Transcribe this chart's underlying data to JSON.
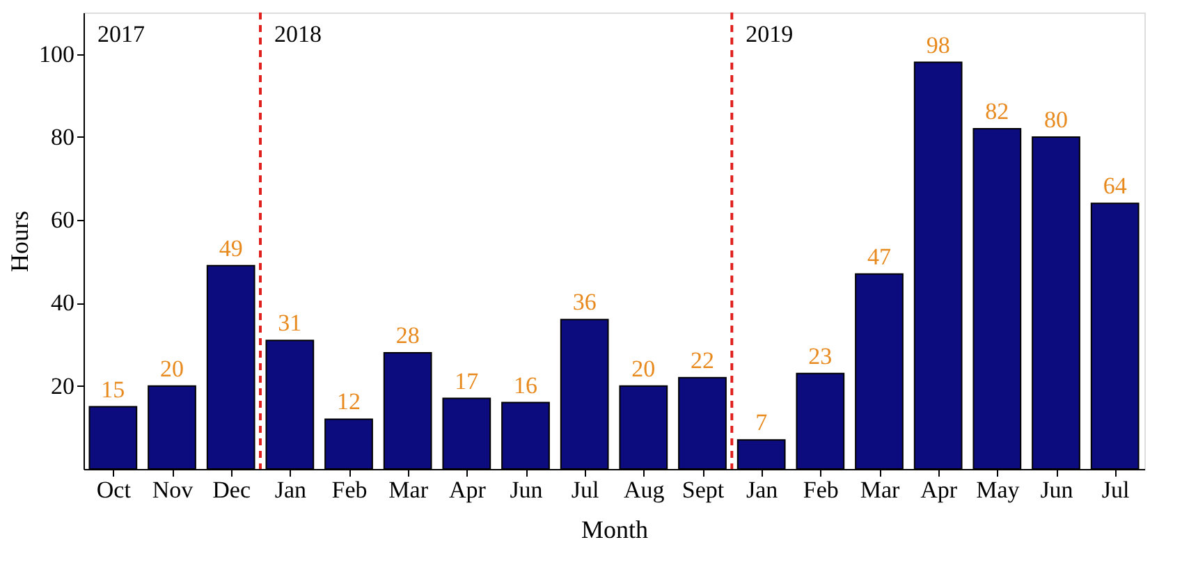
{
  "chart_data": {
    "type": "bar",
    "categories": [
      "Oct",
      "Nov",
      "Dec",
      "Jan",
      "Feb",
      "Mar",
      "Apr",
      "Jun",
      "Jul",
      "Aug",
      "Sept",
      "Jan",
      "Feb",
      "Mar",
      "Apr",
      "May",
      "Jun",
      "Jul"
    ],
    "values": [
      15,
      20,
      49,
      31,
      12,
      28,
      17,
      16,
      36,
      20,
      22,
      7,
      23,
      47,
      98,
      82,
      80,
      64
    ],
    "color": "#0c0c7e",
    "data_labels": true,
    "xlabel": "Month",
    "ylabel": "Hours",
    "ylim": [
      0,
      110
    ],
    "yticks": [
      20,
      40,
      60,
      80,
      100
    ],
    "grid": false,
    "annotations": [
      "2017",
      "2018",
      "2019"
    ]
  }
}
